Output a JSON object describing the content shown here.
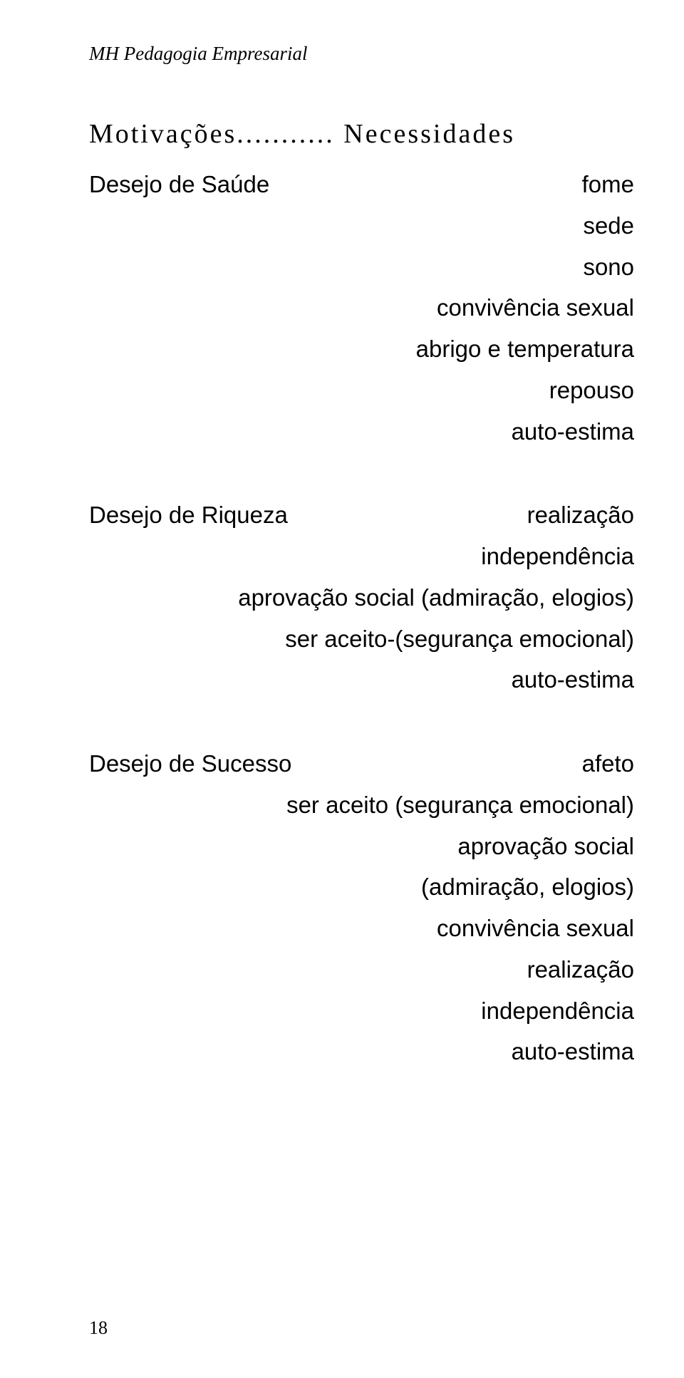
{
  "header": "MH Pedagogia Empresarial",
  "title": "Motivações........... Necessidades",
  "sections": [
    {
      "label": "Desejo de Saúde",
      "items": [
        "fome",
        "sede",
        "sono",
        "convivência sexual",
        "abrigo e temperatura",
        "repouso",
        "auto-estima"
      ]
    },
    {
      "label": "Desejo de Riqueza",
      "items": [
        "realização",
        "independência",
        "aprovação social (admiração, elogios)",
        "ser aceito-(segurança emocional)",
        "auto-estima"
      ]
    },
    {
      "label": "Desejo de Sucesso",
      "items": [
        "afeto",
        "ser aceito (segurança emocional)",
        "aprovação social",
        "(admiração, elogios)",
        "convivência sexual",
        "realização",
        "independência",
        "auto-estima"
      ]
    }
  ],
  "pageNumber": "18"
}
